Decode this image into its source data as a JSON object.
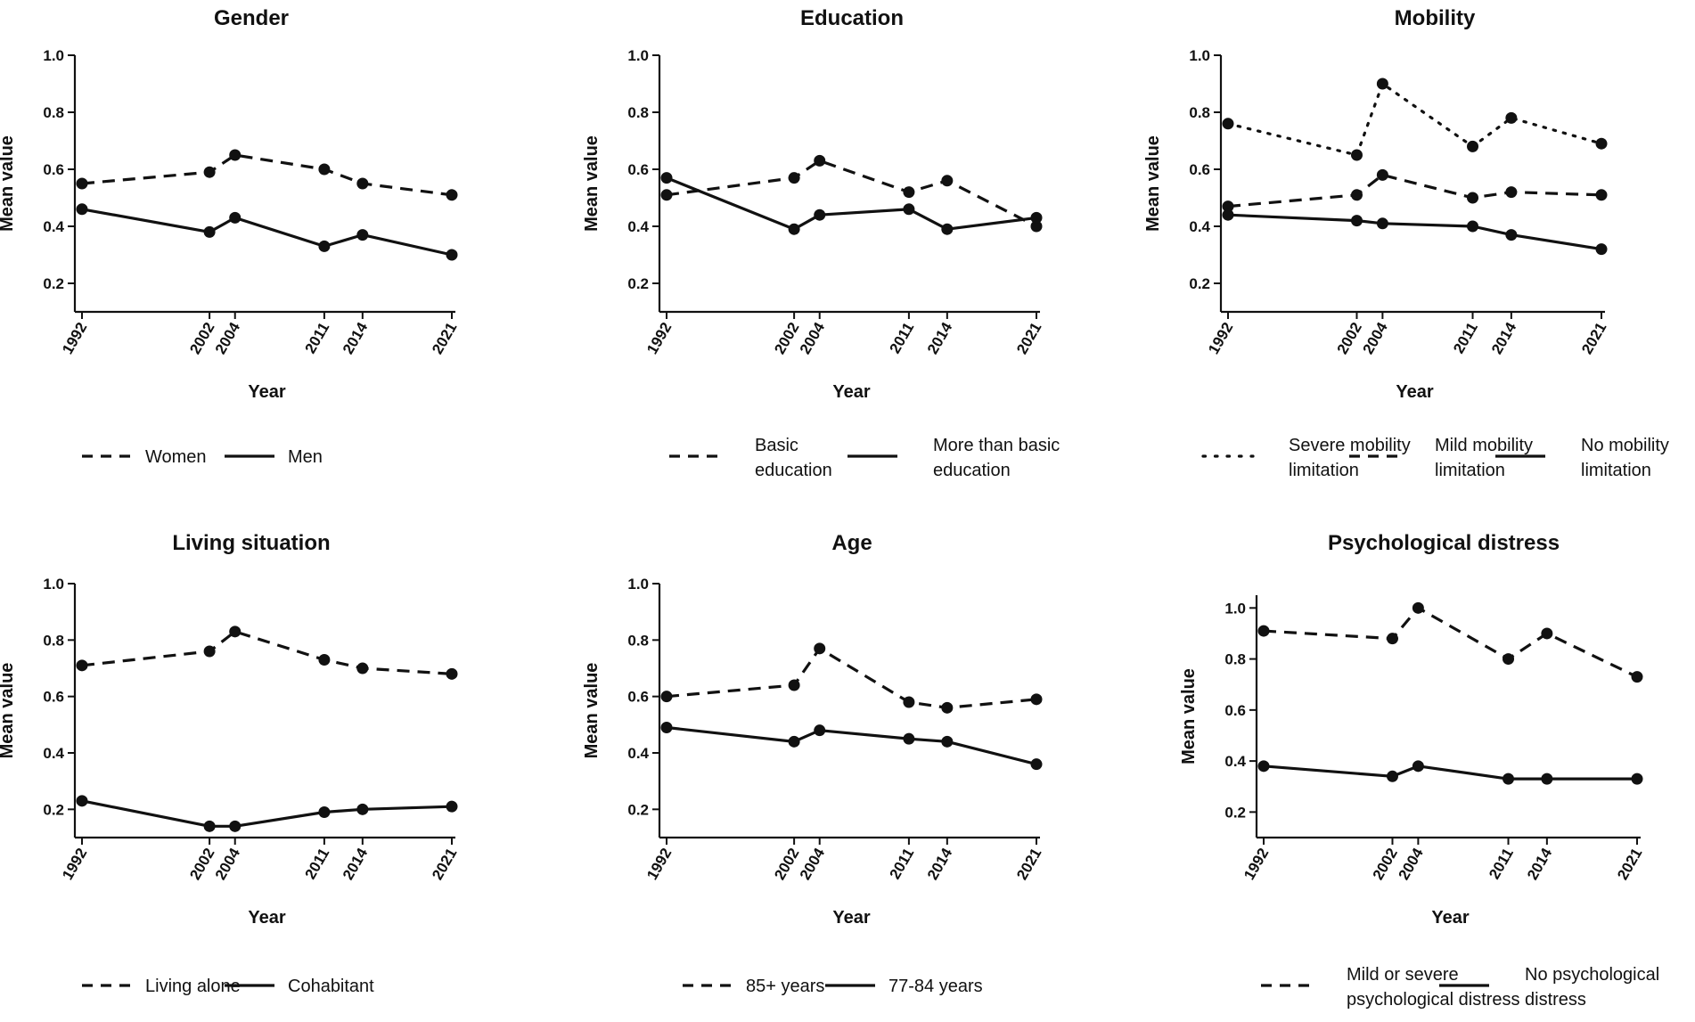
{
  "chart_data": [
    {
      "type": "line",
      "title": "Gender",
      "xlabel": "Year",
      "ylabel": "Mean value",
      "ylim": [
        0.1,
        1.0
      ],
      "yticks": [
        "0.2",
        "0.4",
        "0.6",
        "0.8",
        "1.0"
      ],
      "x": [
        "1992",
        "2002",
        "2004",
        "2011",
        "2014",
        "2021"
      ],
      "series": [
        {
          "name": "Women",
          "style": "dashed",
          "values": [
            0.55,
            0.59,
            0.65,
            0.6,
            0.55,
            0.51
          ]
        },
        {
          "name": "Men",
          "style": "solid",
          "values": [
            0.46,
            0.38,
            0.43,
            0.33,
            0.37,
            0.3
          ]
        }
      ]
    },
    {
      "type": "line",
      "title": "Education",
      "xlabel": "Year",
      "ylabel": "Mean value",
      "ylim": [
        0.1,
        1.0
      ],
      "yticks": [
        "0.2",
        "0.4",
        "0.6",
        "0.8",
        "1.0"
      ],
      "x": [
        "1992",
        "2002",
        "2004",
        "2011",
        "2014",
        "2021"
      ],
      "series": [
        {
          "name": "Basic education",
          "legend_lines": [
            "Basic",
            "education"
          ],
          "style": "dashed",
          "values": [
            0.51,
            0.57,
            0.63,
            0.52,
            0.56,
            0.4
          ]
        },
        {
          "name": "More than basic education",
          "legend_lines": [
            "More than basic",
            "education"
          ],
          "style": "solid",
          "values": [
            0.57,
            0.39,
            0.44,
            0.46,
            0.39,
            0.43
          ]
        }
      ]
    },
    {
      "type": "line",
      "title": "Mobility",
      "xlabel": "Year",
      "ylabel": "Mean value",
      "ylim": [
        0.1,
        1.0
      ],
      "yticks": [
        "0.2",
        "0.4",
        "0.6",
        "0.8",
        "1.0"
      ],
      "x": [
        "1992",
        "2002",
        "2004",
        "2011",
        "2014",
        "2021"
      ],
      "series": [
        {
          "name": "Severe mobility limitation",
          "legend_lines": [
            "Severe mobility",
            "limitation"
          ],
          "style": "dotted",
          "values": [
            0.76,
            0.65,
            0.9,
            0.68,
            0.78,
            0.69
          ]
        },
        {
          "name": "Mild mobility limitation",
          "legend_lines": [
            "Mild mobility",
            "limitation"
          ],
          "style": "dashed",
          "values": [
            0.47,
            0.51,
            0.58,
            0.5,
            0.52,
            0.51
          ]
        },
        {
          "name": "No mobility limitation",
          "legend_lines": [
            "No mobility",
            "limitation"
          ],
          "style": "solid",
          "values": [
            0.44,
            0.42,
            0.41,
            0.4,
            0.37,
            0.32
          ]
        }
      ]
    },
    {
      "type": "line",
      "title": "Living situation",
      "xlabel": "Year",
      "ylabel": "Mean value",
      "ylim": [
        0.1,
        1.0
      ],
      "yticks": [
        "0.2",
        "0.4",
        "0.6",
        "0.8",
        "1.0"
      ],
      "x": [
        "1992",
        "2002",
        "2004",
        "2011",
        "2014",
        "2021"
      ],
      "series": [
        {
          "name": "Living alone",
          "style": "dashed",
          "values": [
            0.71,
            0.76,
            0.83,
            0.73,
            0.7,
            0.68
          ]
        },
        {
          "name": "Cohabitant",
          "style": "solid",
          "values": [
            0.23,
            0.14,
            0.14,
            0.19,
            0.2,
            0.21
          ]
        }
      ]
    },
    {
      "type": "line",
      "title": "Age",
      "xlabel": "Year",
      "ylabel": "Mean value",
      "ylim": [
        0.1,
        1.0
      ],
      "yticks": [
        "0.2",
        "0.4",
        "0.6",
        "0.8",
        "1.0"
      ],
      "x": [
        "1992",
        "2002",
        "2004",
        "2011",
        "2014",
        "2021"
      ],
      "series": [
        {
          "name": "85+ years",
          "style": "dashed",
          "values": [
            0.6,
            0.64,
            0.77,
            0.58,
            0.56,
            0.59
          ]
        },
        {
          "name": "77-84 years",
          "style": "solid",
          "values": [
            0.49,
            0.44,
            0.48,
            0.45,
            0.44,
            0.36
          ]
        }
      ]
    },
    {
      "type": "line",
      "title": "Psychological distress",
      "xlabel": "Year",
      "ylabel": "Mean value",
      "ylim": [
        0.1,
        1.05
      ],
      "yticks": [
        "0.2",
        "0.4",
        "0.6",
        "0.8",
        "1.0"
      ],
      "x": [
        "1992",
        "2002",
        "2004",
        "2011",
        "2014",
        "2021"
      ],
      "series": [
        {
          "name": "Mild or severe psychological distress",
          "legend_lines": [
            "Mild or severe",
            "psychological distress"
          ],
          "style": "dashed",
          "values": [
            0.91,
            0.88,
            1.0,
            0.8,
            0.9,
            0.73
          ]
        },
        {
          "name": "No psychological distress",
          "legend_lines": [
            "No psychological",
            "distress"
          ],
          "style": "solid",
          "values": [
            0.38,
            0.34,
            0.38,
            0.33,
            0.33,
            0.33
          ]
        }
      ]
    }
  ]
}
